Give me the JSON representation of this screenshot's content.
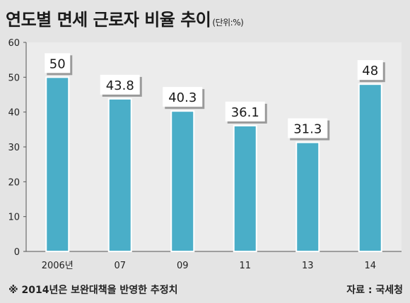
{
  "title": "연도별 면세 근로자 비율 추이",
  "unit_note": "(단위:%)",
  "footnote": "※ 2014년은 보완대책을 반영한 추정치",
  "source": "자료 : 국세청",
  "colors": {
    "bar": "#4aaec8",
    "bar_edge": "#ffffff",
    "background": "#e4e4e4",
    "grid": "#c8c8c8"
  },
  "chart_data": {
    "type": "bar",
    "categories": [
      "2006년",
      "07",
      "09",
      "11",
      "13",
      "14"
    ],
    "values": [
      50,
      43.8,
      40.3,
      36.1,
      31.3,
      48
    ],
    "data_labels": [
      "50",
      "43.8",
      "40.3",
      "36.1",
      "31.3",
      "48"
    ],
    "ylim": [
      0,
      60
    ],
    "yticks": [
      0,
      10,
      20,
      30,
      40,
      50,
      60
    ],
    "grid": false,
    "xlabel": "",
    "ylabel": ""
  }
}
